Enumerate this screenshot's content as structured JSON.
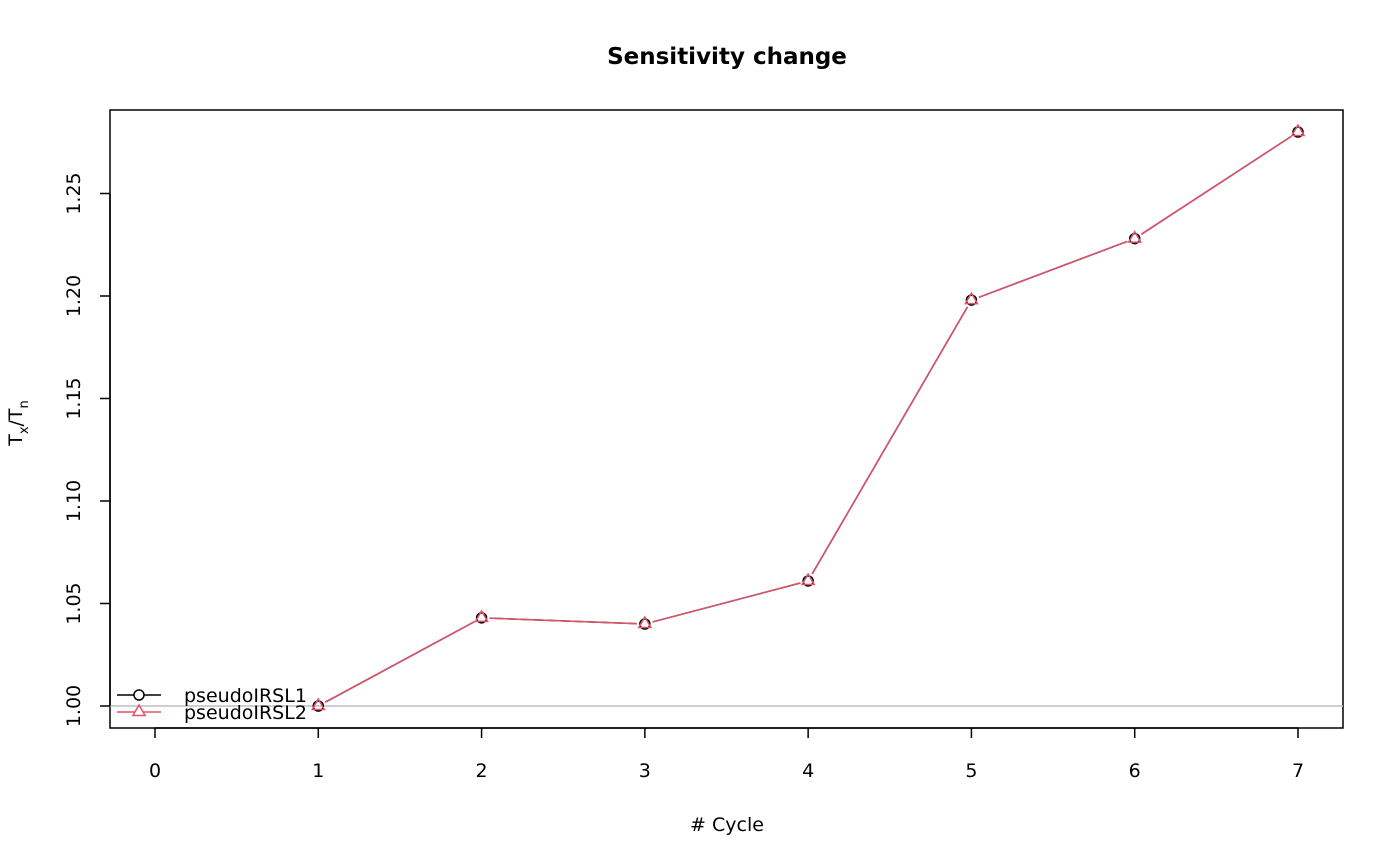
{
  "chart_data": {
    "type": "line",
    "title": "Sensitivity change",
    "xlabel": "# Cycle",
    "ylabel": {
      "main": "T",
      "sub1": "x",
      "slash": "/T",
      "sub2": "n"
    },
    "xlim": [
      0,
      7
    ],
    "ylim": [
      1.0,
      1.28
    ],
    "x_ticks": [
      "0",
      "1",
      "2",
      "3",
      "4",
      "5",
      "6",
      "7"
    ],
    "y_ticks": [
      "1.00",
      "1.05",
      "1.10",
      "1.15",
      "1.20",
      "1.25"
    ],
    "x": [
      1,
      2,
      3,
      4,
      5,
      6,
      7
    ],
    "series": [
      {
        "name": "pseudoIRSL1",
        "marker": "circle",
        "color": "#000000",
        "values": [
          1.0,
          1.043,
          1.04,
          1.061,
          1.198,
          1.228,
          1.28
        ]
      },
      {
        "name": "pseudoIRSL2",
        "marker": "triangle",
        "color": "#DF536B",
        "values": [
          1.0,
          1.043,
          1.04,
          1.061,
          1.198,
          1.228,
          1.28
        ]
      }
    ],
    "reference_line": {
      "y": 1.0,
      "color": "#BEBEBE"
    },
    "legend_position": "bottom-left",
    "grid": false
  }
}
